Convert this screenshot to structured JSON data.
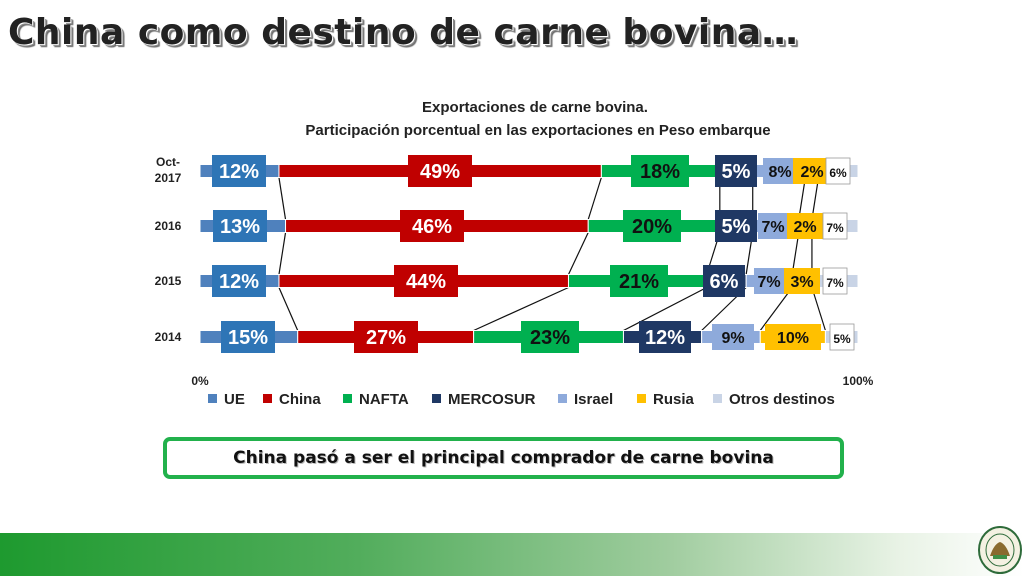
{
  "slide": {
    "title": "China como destino de carne bovina…",
    "callout": "China pasó a ser el principal comprador de carne bovina",
    "logo_text": "ASOCIACIÓN RURAL DEL PARAGUAY"
  },
  "colors": {
    "UE": "#4f81bd",
    "China": "#c00000",
    "NAFTA": "#00b050",
    "MERCOSUR": "#1f3864",
    "Israel": "#8eaadb",
    "Rusia": "#ffc000",
    "Otros destinos": "#c9d4e6",
    "footer_green": "#1e9a2f",
    "callout_border": "#22b14c"
  },
  "chart_data": {
    "type": "bar",
    "orientation": "horizontal",
    "stacked": "100%",
    "title": "Exportaciones de carne bovina.",
    "subtitle": "Participación porcentual en las exportaciones en Peso embarque",
    "categories": [
      "Oct-2017",
      "2016",
      "2015",
      "2014"
    ],
    "series": [
      {
        "name": "UE",
        "values": [
          12,
          13,
          12,
          15
        ],
        "labels": [
          "12%",
          "13%",
          "12%",
          "15%"
        ]
      },
      {
        "name": "China",
        "values": [
          49,
          46,
          44,
          27
        ],
        "labels": [
          "49%",
          "46%",
          "44%",
          "27%"
        ]
      },
      {
        "name": "NAFTA",
        "values": [
          18,
          20,
          21,
          23
        ],
        "labels": [
          "18%",
          "20%",
          "21%",
          "23%"
        ]
      },
      {
        "name": "MERCOSUR",
        "values": [
          5,
          5,
          6,
          12
        ],
        "labels": [
          "5%",
          "5%",
          "6%",
          "12%"
        ]
      },
      {
        "name": "Israel",
        "values": [
          8,
          7,
          7,
          9
        ],
        "labels": [
          "8%",
          "7%",
          "7%",
          "9%"
        ]
      },
      {
        "name": "Rusia",
        "values": [
          2,
          2,
          3,
          10
        ],
        "labels": [
          "2%",
          "2%",
          "3%",
          "10%"
        ]
      },
      {
        "name": "Otros destinos",
        "values": [
          6,
          7,
          7,
          5
        ],
        "labels": [
          "6%",
          "7%",
          "7%",
          "5%"
        ]
      }
    ],
    "xaxis_ticks": [
      "0%",
      "100%"
    ],
    "xlim": [
      0,
      100
    ],
    "legend_position": "bottom",
    "grid": false,
    "series_lines": true
  }
}
